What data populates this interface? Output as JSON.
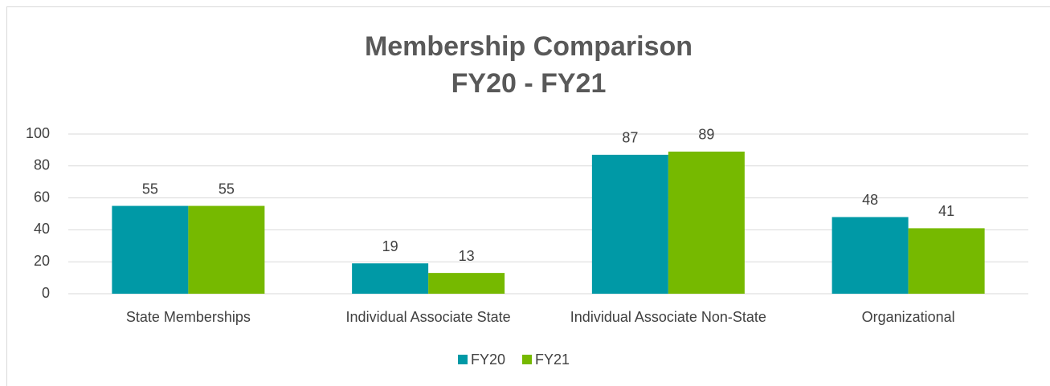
{
  "chart_data": {
    "type": "bar",
    "title": "Membership Comparison",
    "subtitle": "FY20 - FY21",
    "categories": [
      "State Memberships",
      "Individual Associate State",
      "Individual Associate Non-State",
      "Organizational"
    ],
    "series": [
      {
        "name": "FY20",
        "color": "#0099a6",
        "values": [
          55,
          19,
          87,
          48
        ]
      },
      {
        "name": "FY21",
        "color": "#76b900",
        "values": [
          55,
          13,
          89,
          41
        ]
      }
    ],
    "ylim": [
      0,
      100
    ],
    "yticks": [
      0,
      20,
      40,
      60,
      80,
      100
    ],
    "grid": true,
    "legend": "bottom"
  }
}
